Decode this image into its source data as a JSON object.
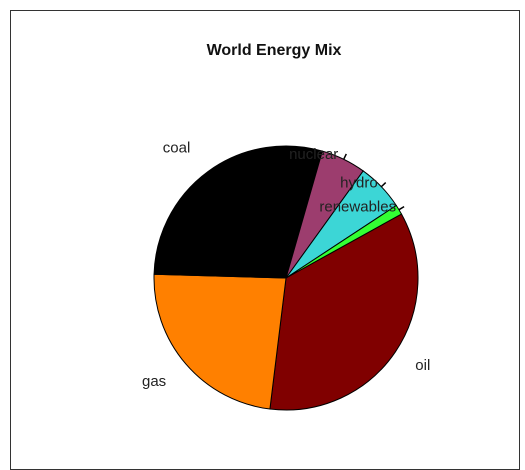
{
  "chart_data": {
    "type": "pie",
    "title": "World Energy Mix",
    "start_angle_deg": -29,
    "direction": "clockwise",
    "slices": [
      {
        "label": "oil",
        "value": 35.0,
        "color": "#800000"
      },
      {
        "label": "gas",
        "value": 23.5,
        "color": "#ff8000"
      },
      {
        "label": "coal",
        "value": 29.0,
        "color": "#000000"
      },
      {
        "label": "nuclear",
        "value": 5.5,
        "color": "#9c3d6e"
      },
      {
        "label": "hydro",
        "value": 5.8,
        "color": "#3cd6d6"
      },
      {
        "label": "renewables",
        "value": 1.2,
        "color": "#33ff33"
      }
    ]
  }
}
